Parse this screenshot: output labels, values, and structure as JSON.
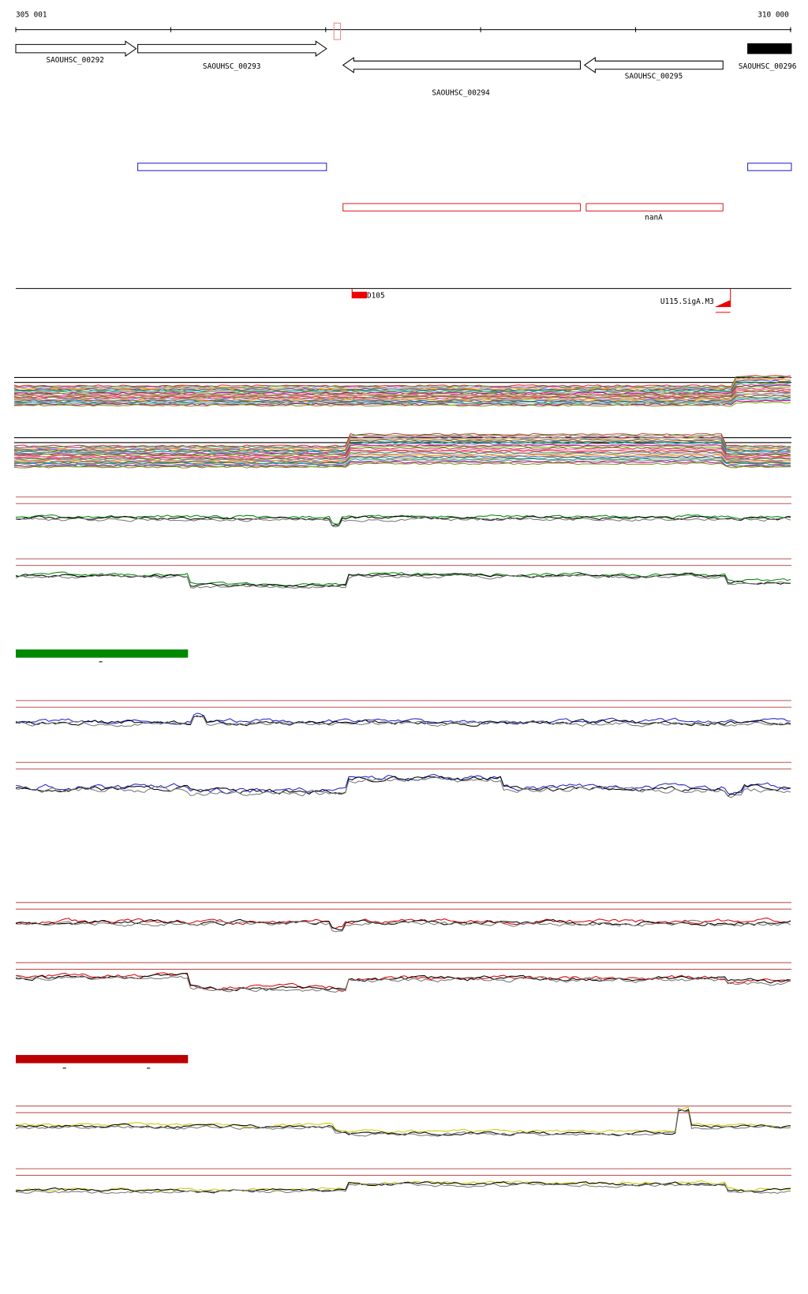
{
  "ruler": {
    "start": "305 001",
    "end": "310 000"
  },
  "genes": [
    {
      "label": "SAOUHSC_00292"
    },
    {
      "label": "SAOUHSC_00293"
    },
    {
      "label": "SAOUHSC_00294"
    },
    {
      "label": "SAOUHSC_00295"
    },
    {
      "label": "SAOUHSC_00296"
    }
  ],
  "operons": {
    "label": "nanA"
  },
  "features": [
    {
      "label": "D105"
    },
    {
      "label": "U115.SigA.M3"
    }
  ]
}
